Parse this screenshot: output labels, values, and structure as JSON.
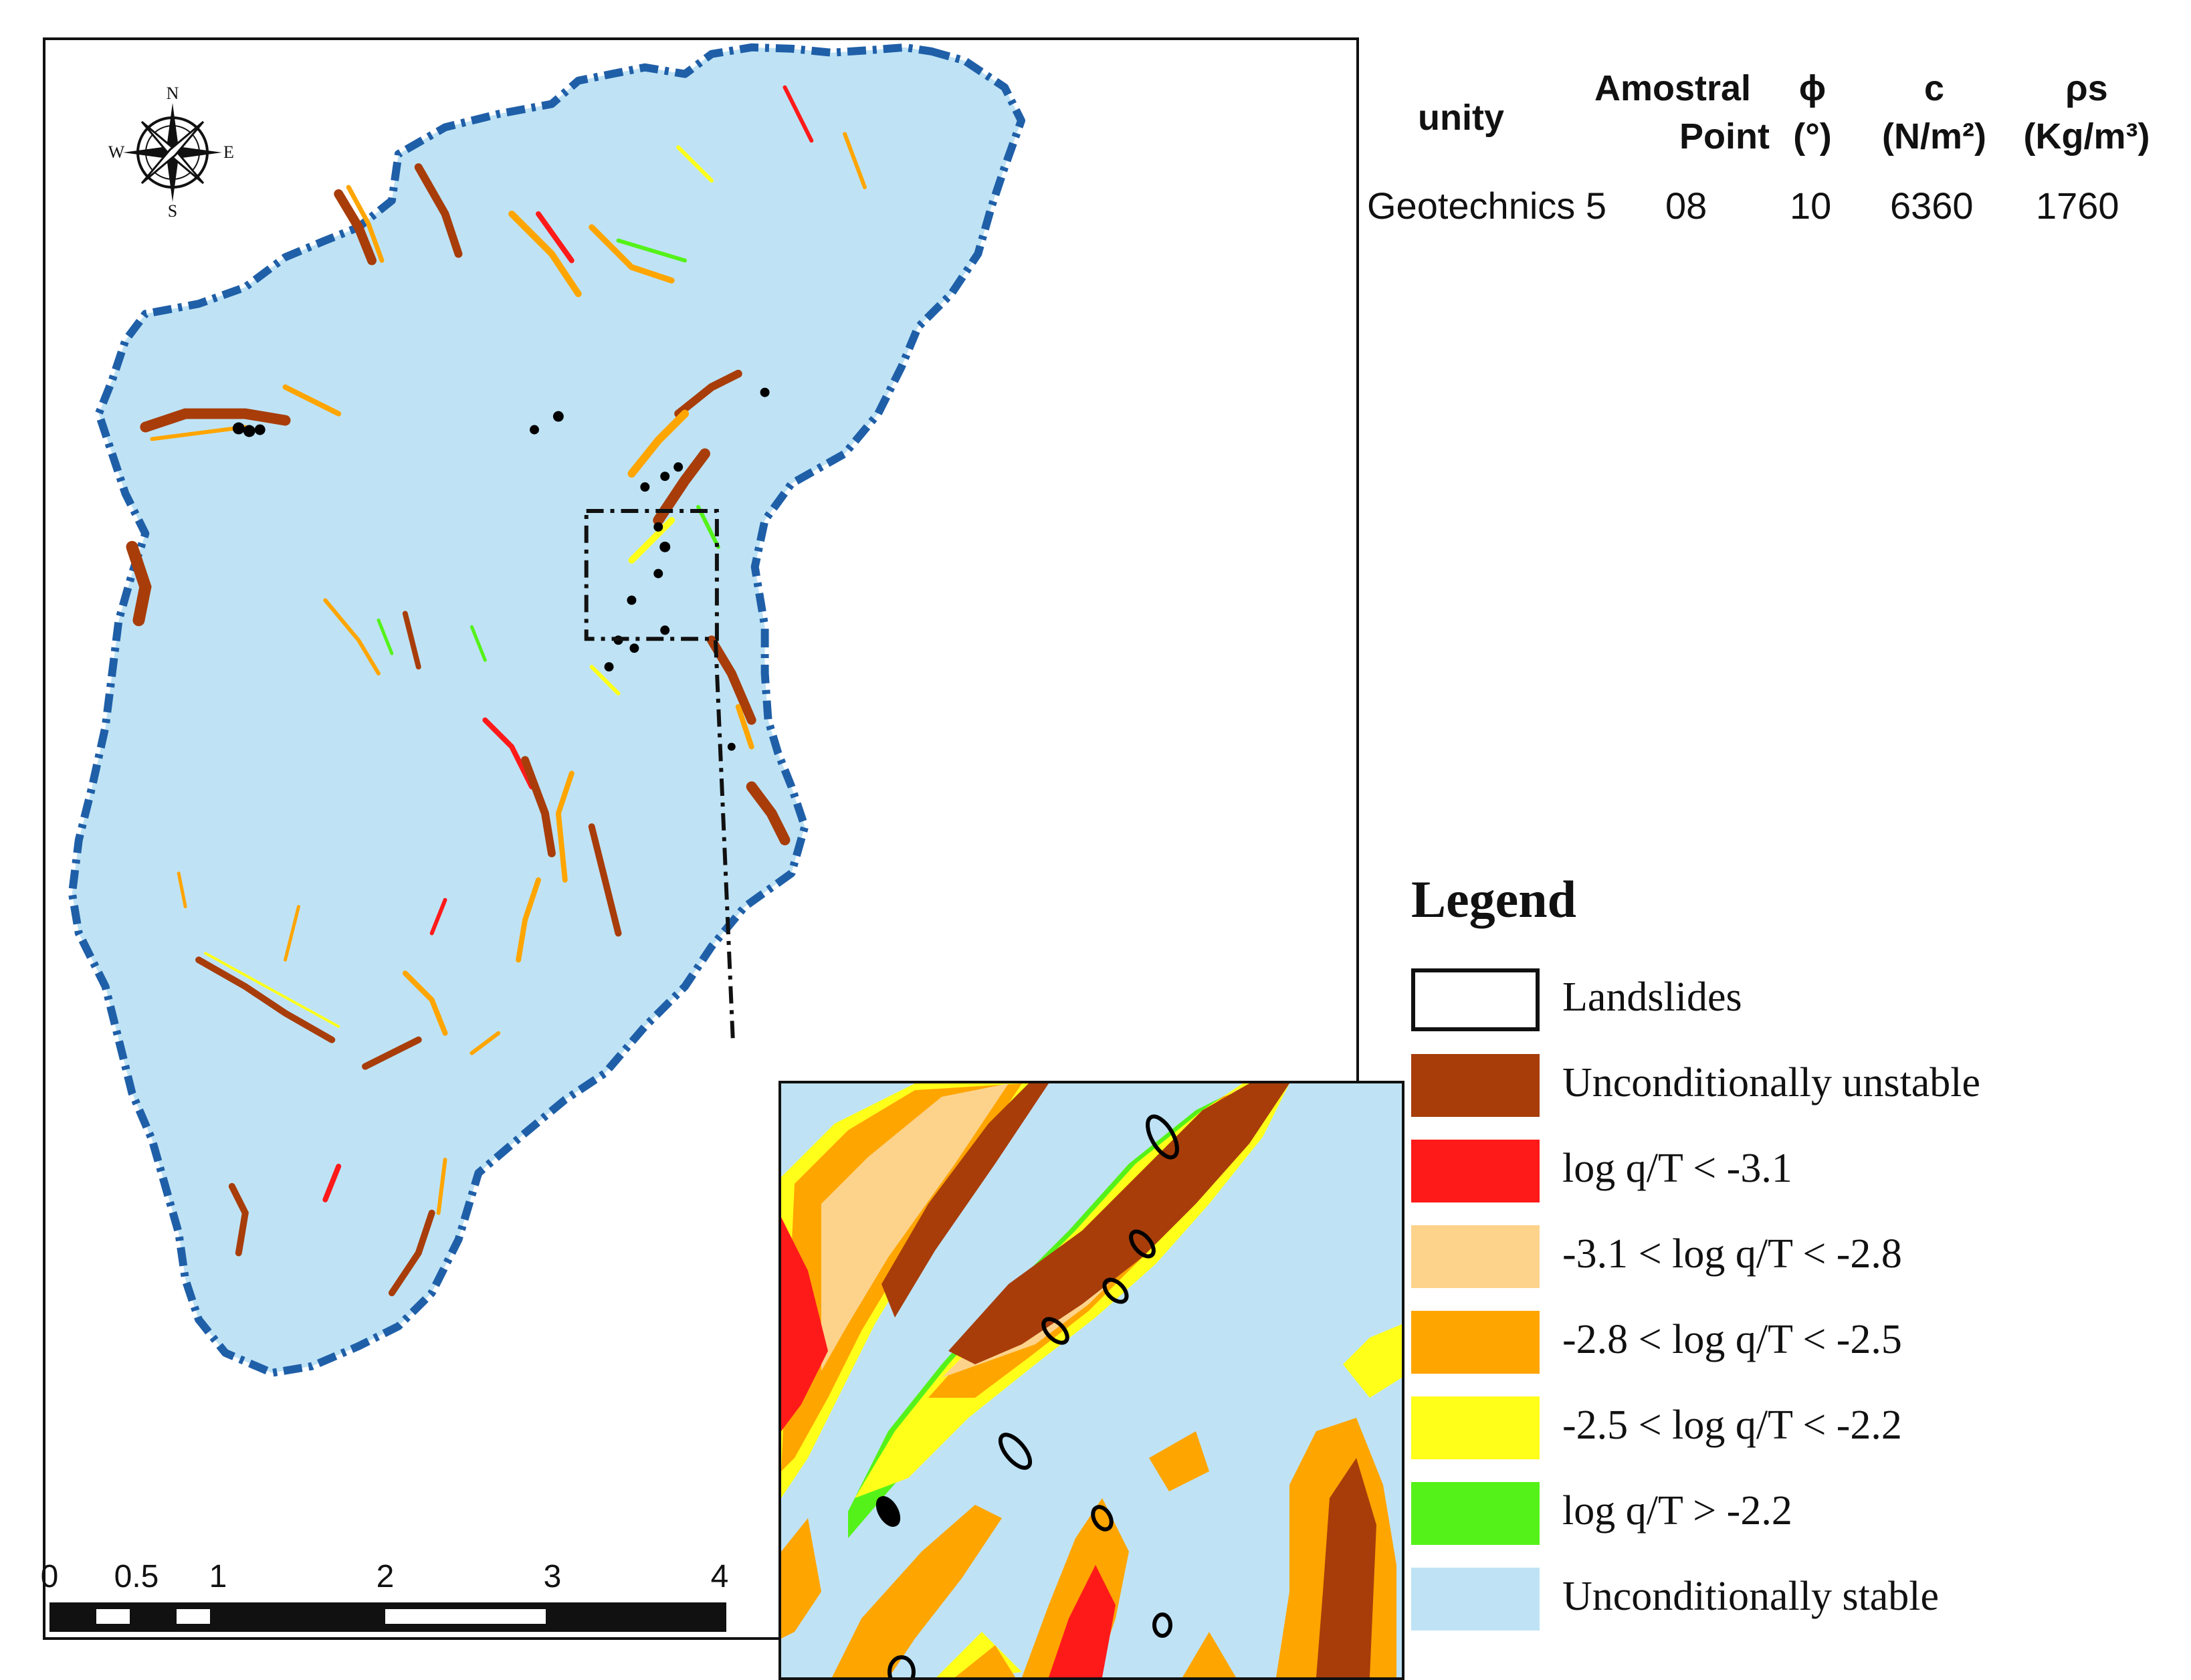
{
  "compass": {
    "n": "N",
    "s": "S",
    "e": "E",
    "w": "W"
  },
  "scale_bar": {
    "ticks": [
      "0",
      "0.5",
      "1",
      "2",
      "3",
      "4"
    ]
  },
  "parameters_table": {
    "headers": {
      "unity": "unity",
      "amostral_1": "Amostral",
      "amostral_2": "Point",
      "phi_1": "ϕ",
      "phi_2": "(°)",
      "c_1": "c",
      "c_2": "(N/m²)",
      "rho_1": "ρs",
      "rho_2": "(Kg/m³)"
    },
    "row": {
      "unity": "Geotechnics 5",
      "amostral_point": "08",
      "phi": "10",
      "c": "6360",
      "rho": "1760"
    }
  },
  "legend": {
    "title": "Legend",
    "items": [
      {
        "label": "Landslides",
        "color": "#ffffff"
      },
      {
        "label": "Unconditionally unstable",
        "color": "#a83d0a"
      },
      {
        "label": "log q/T < -3.1",
        "color": "#ff1a1a"
      },
      {
        "label": "-3.1 < log q/T < -2.8",
        "color": "#fdd38c"
      },
      {
        "label": "-2.8 < log q/T < -2.5",
        "color": "#ffa500"
      },
      {
        "label": "-2.5 < log q/T < -2.2",
        "color": "#ffff1a"
      },
      {
        "label": "log q/T > -2.2",
        "color": "#55f21a"
      },
      {
        "label": "Unconditionally stable",
        "color": "#bfe3f5"
      }
    ]
  },
  "colors": {
    "basin_boundary": "#1f5fa8",
    "stable_fill": "#bfe3f5",
    "unstable": "#a83d0a",
    "red": "#ff1a1a",
    "light_orange": "#fdd38c",
    "orange": "#ffa500",
    "yellow": "#ffff1a",
    "green": "#55f21a"
  }
}
